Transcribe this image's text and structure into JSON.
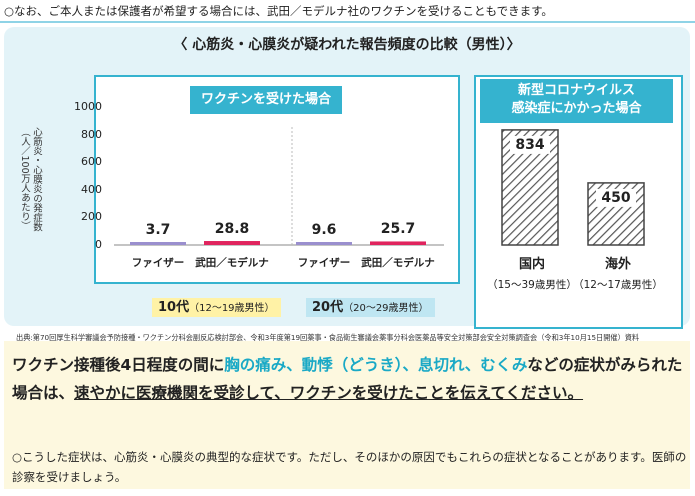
{
  "top_note": "○なお、ご本人または保護者が希望する場合には、武田／モデルナ社のワクチンを受けることもできます。",
  "chart_panel": {
    "title": "〈 心筋炎・心膜炎が疑われた報告頻度の比較（男性）〉",
    "vaccine_header": "ワクチンを受けた場合",
    "infection_header_line1": "新型コロナウイルス",
    "infection_header_line2": "感染症にかかった場合",
    "y_title_line1": "心筋炎・心膜炎の発症数",
    "y_title_line2": "（人／100万人あたり）",
    "group_10": {
      "label": "10代",
      "ages": "（12〜19歳男性）"
    },
    "group_20": {
      "label": "20代",
      "ages": "（20〜29歳男性）"
    },
    "infection_cats": [
      {
        "label": "国内",
        "sub": "（15〜39歳男性）"
      },
      {
        "label": "海外",
        "sub": "（12〜17歳男性）"
      }
    ],
    "source": "出典:第70回厚生科学審議会予防接種・ワクチン分科会副反応検討部会、令和3年度第19回薬事・食品衛生審議会薬事分科会医薬品等安全対策部会安全対策調査会（令和3年10月15日開催）資料"
  },
  "chart_data": [
    {
      "type": "bar",
      "title": "ワクチンを受けた場合",
      "ylabel": "心筋炎・心膜炎の発症数（人／100万人あたり）",
      "ylim": [
        0,
        1000
      ],
      "yticks": [
        "0",
        "200",
        "400",
        "600",
        "800",
        "1000"
      ],
      "categories": [
        "ファイザー",
        "武田／モデルナ",
        "ファイザー",
        "武田／モデルナ"
      ],
      "groups": [
        "10代（12〜19歳男性）",
        "10代（12〜19歳男性）",
        "20代（20〜29歳男性）",
        "20代（20〜29歳男性）"
      ],
      "values": [
        3.7,
        28.8,
        9.6,
        25.7
      ],
      "value_labels": [
        "3.7",
        "28.8",
        "9.6",
        "25.7"
      ],
      "colors": [
        "#9a8fce",
        "#e0245e",
        "#9a8fce",
        "#e0245e"
      ]
    },
    {
      "type": "bar",
      "title": "新型コロナウイルス感染症にかかった場合",
      "ylim": [
        0,
        1000
      ],
      "categories": [
        "国内",
        "海外"
      ],
      "subcategories": [
        "（15〜39歳男性）",
        "（12〜17歳男性）"
      ],
      "values": [
        834,
        450
      ],
      "value_labels": [
        "834",
        "450"
      ],
      "pattern": "diagonal-hatch"
    }
  ],
  "advice": {
    "part1": "ワクチン接種後4日程度の間に",
    "symptoms1": "胸の痛み、動悸（どうき）、息切れ、むくみ",
    "part2": "などの症状がみられた場合は、",
    "action": "速やかに医療機関を受診して、ワクチンを受けたことを伝えてください。",
    "closing": "○こうした症状は、心筋炎・心膜炎の典型的な症状です。ただし、そのほかの原因でもこれらの症状となることがあります。医師の診察を受けましょう。"
  }
}
